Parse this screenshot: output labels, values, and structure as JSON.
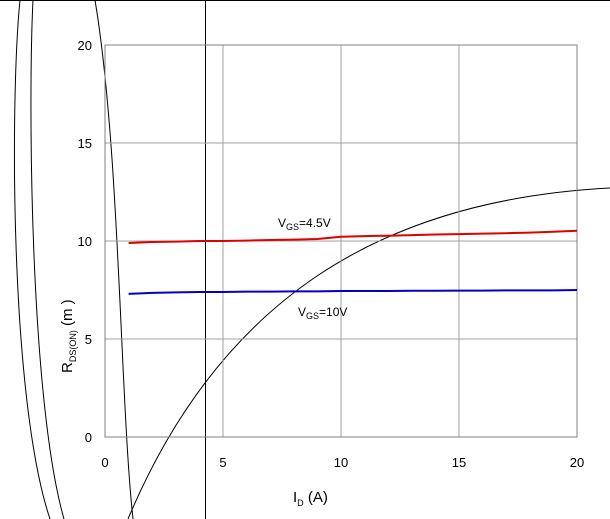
{
  "chart_data": {
    "type": "line",
    "xlabel": {
      "main": "I",
      "sub": "D",
      "unit": " (A)"
    },
    "ylabel": {
      "main": "R",
      "sub": "DS(ON)",
      "unit": " (m  )"
    },
    "xlim": [
      0,
      20
    ],
    "ylim": [
      0,
      20
    ],
    "x_ticks": [
      0,
      5,
      10,
      15,
      20
    ],
    "y_ticks": [
      0,
      5,
      10,
      15,
      20
    ],
    "x_tick_labels": [
      "0",
      "5",
      "10",
      "15",
      "20"
    ],
    "y_tick_labels": [
      "0",
      "5",
      "10",
      "15",
      "20"
    ],
    "grid": true,
    "series": [
      {
        "label_main": "V",
        "label_sub": "GS",
        "label_value": "=4.5V",
        "color": "#e00000",
        "x": [
          1,
          2,
          3,
          4,
          5,
          6,
          7,
          8,
          9,
          10,
          11,
          12,
          13,
          14,
          15,
          16,
          17,
          18,
          19,
          20
        ],
        "y": [
          9.9,
          9.95,
          9.97,
          10.0,
          10.0,
          10.02,
          10.05,
          10.07,
          10.1,
          10.22,
          10.25,
          10.27,
          10.3,
          10.33,
          10.35,
          10.38,
          10.4,
          10.43,
          10.47,
          10.52
        ]
      },
      {
        "label_main": "V",
        "label_sub": "GS",
        "label_value": "=10V",
        "color": "#0000cc",
        "x": [
          1,
          2,
          3,
          4,
          5,
          6,
          7,
          8,
          9,
          10,
          11,
          12,
          13,
          14,
          15,
          16,
          17,
          18,
          19,
          20
        ],
        "y": [
          7.3,
          7.35,
          7.38,
          7.4,
          7.4,
          7.42,
          7.42,
          7.43,
          7.43,
          7.45,
          7.45,
          7.45,
          7.46,
          7.46,
          7.47,
          7.47,
          7.48,
          7.48,
          7.48,
          7.5
        ]
      }
    ]
  }
}
